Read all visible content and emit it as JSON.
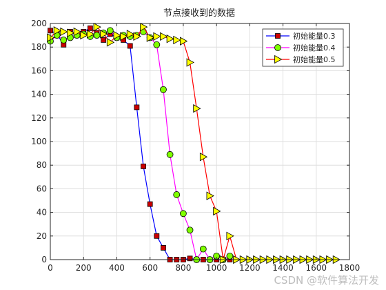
{
  "chart_data": {
    "type": "line",
    "title": "节点接收到的数据",
    "xlabel": "",
    "ylabel": "",
    "xlim": [
      0,
      1800
    ],
    "ylim": [
      0,
      200
    ],
    "xticks": [
      0,
      200,
      400,
      600,
      800,
      1000,
      1200,
      1400,
      1600,
      1800
    ],
    "yticks": [
      0,
      20,
      40,
      60,
      80,
      100,
      120,
      140,
      160,
      180,
      200
    ],
    "grid": true,
    "legend_position": "top-right",
    "series": [
      {
        "name": "初始能量0.3",
        "line_color": "#0000ff",
        "marker": "square",
        "marker_fill": "#cc0000",
        "x": [
          0,
          40,
          80,
          120,
          160,
          200,
          240,
          280,
          320,
          360,
          400,
          440,
          480,
          520,
          560,
          600,
          640,
          680,
          720,
          760,
          800,
          840,
          880,
          920,
          960,
          1000,
          1040,
          1080
        ],
        "y": [
          194,
          191,
          182,
          193,
          190,
          193,
          196,
          192,
          186,
          191,
          188,
          186,
          181,
          129,
          79,
          47,
          20,
          10,
          0,
          0,
          0,
          1,
          0,
          0,
          0,
          0,
          0,
          0
        ]
      },
      {
        "name": "初始能量0.4",
        "line_color": "#ff00ff",
        "marker": "circle",
        "marker_fill": "#80ff00",
        "x": [
          0,
          40,
          80,
          120,
          160,
          200,
          240,
          280,
          320,
          360,
          400,
          440,
          480,
          520,
          560,
          600,
          640,
          680,
          720,
          760,
          800,
          840,
          880,
          920,
          960,
          1000,
          1040,
          1080
        ],
        "y": [
          185,
          190,
          186,
          188,
          190,
          191,
          189,
          190,
          192,
          194,
          188,
          190,
          189,
          190,
          193,
          188,
          182,
          144,
          89,
          55,
          39,
          25,
          0,
          9,
          0,
          3,
          0,
          3
        ]
      },
      {
        "name": "初始能量0.5",
        "line_color": "#ff0000",
        "marker": "triangle-right",
        "marker_fill": "#ffff00",
        "x": [
          0,
          40,
          80,
          120,
          160,
          200,
          240,
          280,
          320,
          360,
          400,
          440,
          480,
          520,
          560,
          600,
          640,
          680,
          720,
          760,
          800,
          840,
          880,
          920,
          960,
          1000,
          1040,
          1080,
          1120,
          1160,
          1200,
          1240,
          1280,
          1320,
          1360,
          1400,
          1440,
          1480,
          1520,
          1560,
          1600,
          1640,
          1680,
          1720
        ],
        "y": [
          188,
          194,
          193,
          192,
          193,
          190,
          191,
          197,
          191,
          184,
          190,
          189,
          191,
          189,
          197,
          188,
          189,
          189,
          187,
          186,
          185,
          167,
          128,
          87,
          54,
          41,
          0,
          20,
          0,
          0,
          0,
          0,
          0,
          0,
          0,
          0,
          0,
          0,
          0,
          0,
          0,
          0,
          0,
          0
        ]
      }
    ]
  },
  "watermark": "CSDN @软件算法开发"
}
